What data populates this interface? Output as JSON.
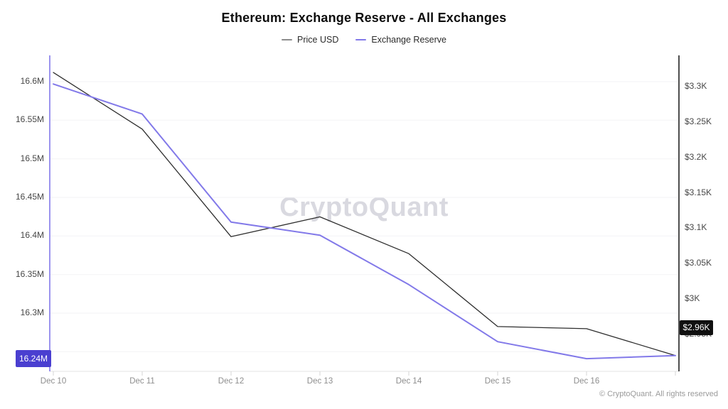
{
  "page": {
    "title": "Ethereum: Exchange Reserve - All Exchanges",
    "watermark": "CryptoQuant",
    "footer": "© CryptoQuant. All rights reserved"
  },
  "legend": {
    "items": [
      {
        "label": "Price USD",
        "color": "#8c8c8c"
      },
      {
        "label": "Exchange Reserve",
        "color": "#8279e9"
      }
    ]
  },
  "chart_data": {
    "type": "line",
    "title": "Ethereum: Exchange Reserve - All Exchanges",
    "legend_position": "top",
    "grid": "horizontal",
    "categories": [
      "Dec 10",
      "Dec 11",
      "Dec 12",
      "Dec 13",
      "Dec 14",
      "Dec 15",
      "Dec 16",
      ""
    ],
    "series": [
      {
        "name": "Price USD",
        "axis": "right",
        "unit": "USD",
        "color": "#2e2e2e",
        "values": [
          3320,
          3240,
          3088,
          3116,
          3064,
          2961,
          2958,
          2920
        ]
      },
      {
        "name": "Exchange Reserve",
        "axis": "left",
        "unit": "M ETH",
        "color": "#8279e9",
        "values": [
          16.597,
          16.558,
          16.418,
          16.401,
          16.337,
          16.263,
          16.241,
          16.245
        ]
      }
    ],
    "left_axis": {
      "color": "#7b70e8",
      "range": [
        16.225,
        16.635
      ],
      "ticks": [
        {
          "label": "16.6M",
          "value": 16.6
        },
        {
          "label": "16.55M",
          "value": 16.55
        },
        {
          "label": "16.5M",
          "value": 16.5
        },
        {
          "label": "16.45M",
          "value": 16.45
        },
        {
          "label": "16.4M",
          "value": 16.4
        },
        {
          "label": "16.35M",
          "value": 16.35
        },
        {
          "label": "16.3M",
          "value": 16.3
        },
        {
          "label": "",
          "value": 16.25
        }
      ],
      "highlight": {
        "label": "16.24M",
        "value": 16.241
      }
    },
    "right_axis": {
      "color": "#141414",
      "range": [
        2905,
        3345
      ],
      "ticks": [
        {
          "label": "$3.3K",
          "value": 3300
        },
        {
          "label": "$3.25K",
          "value": 3250
        },
        {
          "label": "$3.2K",
          "value": 3200
        },
        {
          "label": "$3.15K",
          "value": 3150
        },
        {
          "label": "$3.1K",
          "value": 3100
        },
        {
          "label": "$3.05K",
          "value": 3050
        },
        {
          "label": "$3K",
          "value": 3000
        },
        {
          "label": "$2.95K",
          "value": 2950
        }
      ],
      "highlight": {
        "label": "$2.96K",
        "value": 2960
      }
    }
  }
}
